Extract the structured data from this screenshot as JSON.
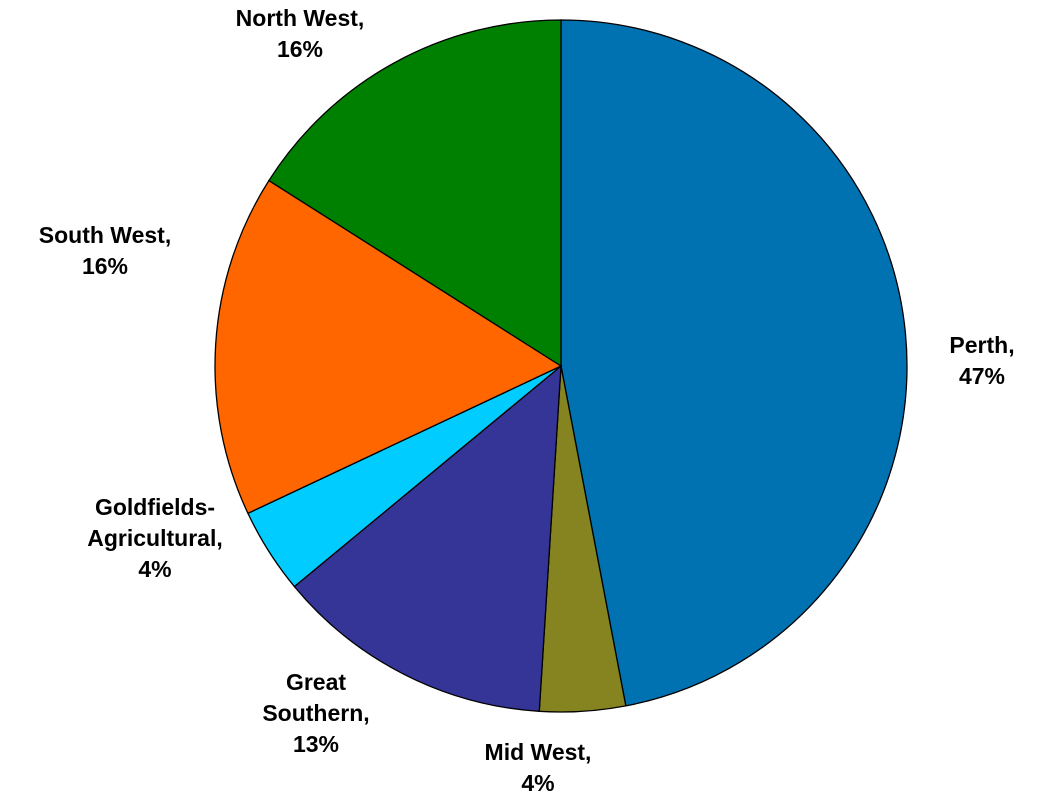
{
  "chart_data": {
    "type": "pie",
    "title": "",
    "slices": [
      {
        "lines": [
          "Perth,",
          "47%"
        ],
        "value": 47,
        "color": "#0072B2"
      },
      {
        "lines": [
          "Mid West,",
          "4%"
        ],
        "value": 4,
        "color": "#868421"
      },
      {
        "lines": [
          "Great",
          "Southern,",
          "13%"
        ],
        "value": 13,
        "color": "#353597"
      },
      {
        "lines": [
          "Goldfields-",
          "Agricultural,",
          "4%"
        ],
        "value": 4,
        "color": "#00CCFF"
      },
      {
        "lines": [
          "South West,",
          "16%"
        ],
        "value": 16,
        "color": "#FF6600"
      },
      {
        "lines": [
          "North West,",
          "16%"
        ],
        "value": 16,
        "color": "#008000"
      }
    ],
    "start_angle_deg": 0,
    "direction": "clockwise",
    "data_labels": "outside",
    "legend": "none"
  }
}
